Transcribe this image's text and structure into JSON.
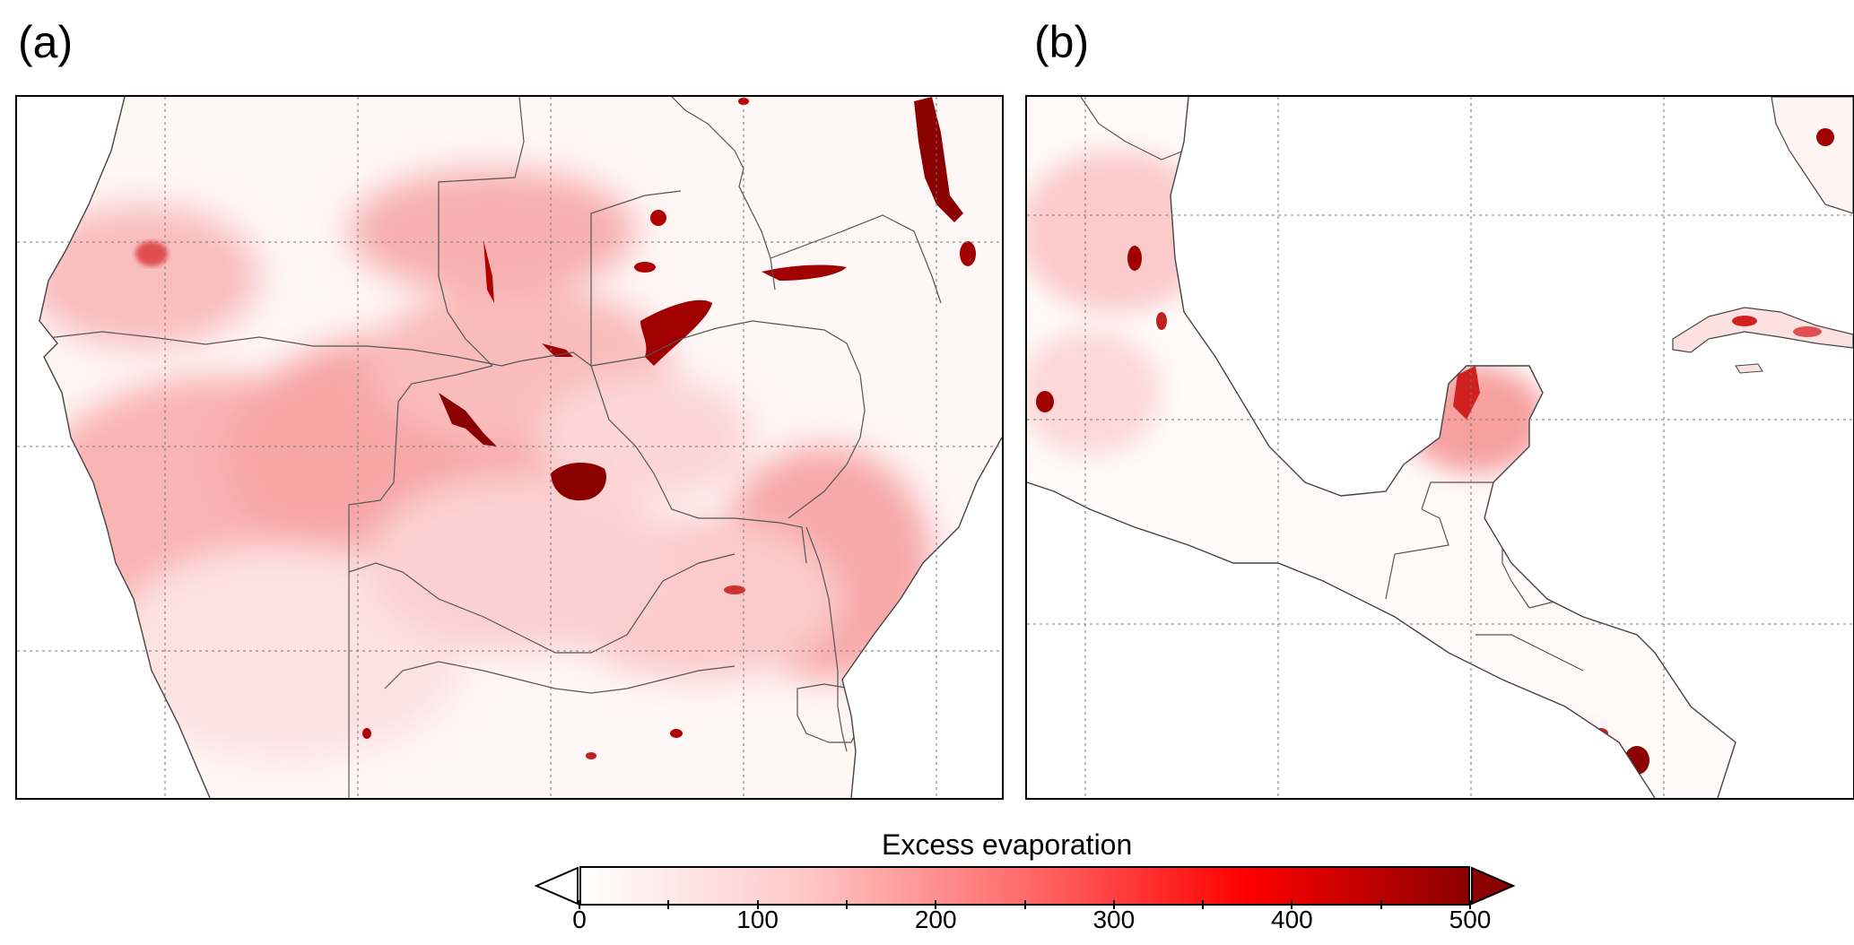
{
  "panels": [
    {
      "label": "(a)",
      "region": "southern-africa"
    },
    {
      "label": "(b)",
      "region": "central-america"
    }
  ],
  "colorbar": {
    "title": "Excess evaporation",
    "min": 0,
    "max": 500,
    "tick_labels": [
      "0",
      "100",
      "200",
      "300",
      "400",
      "500"
    ],
    "colors": [
      "#ffffff",
      "#ffc8c8",
      "#ff6a6a",
      "#ff0000",
      "#8b0000"
    ],
    "extend_low_color": "#ffffff",
    "extend_high_color": "#8b0000"
  }
}
